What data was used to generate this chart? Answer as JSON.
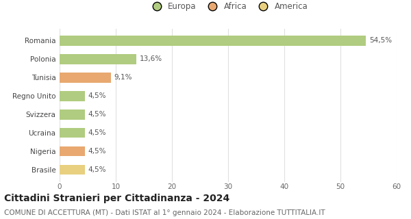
{
  "countries": [
    "Brasile",
    "Nigeria",
    "Ucraina",
    "Svizzera",
    "Regno Unito",
    "Tunisia",
    "Polonia",
    "Romania"
  ],
  "values": [
    4.5,
    4.5,
    4.5,
    4.5,
    4.5,
    9.1,
    13.6,
    54.5
  ],
  "labels": [
    "4,5%",
    "4,5%",
    "4,5%",
    "4,5%",
    "4,5%",
    "9,1%",
    "13,6%",
    "54,5%"
  ],
  "colors": [
    "#e8d080",
    "#e8a870",
    "#b0cc80",
    "#b0cc80",
    "#b0cc80",
    "#e8a870",
    "#b0cc80",
    "#b0cc80"
  ],
  "legend": [
    {
      "label": "Europa",
      "color": "#b0cc80"
    },
    {
      "label": "Africa",
      "color": "#e8a870"
    },
    {
      "label": "America",
      "color": "#e8d080"
    }
  ],
  "xlim": [
    0,
    60
  ],
  "xticks": [
    0,
    10,
    20,
    30,
    40,
    50,
    60
  ],
  "title": "Cittadini Stranieri per Cittadinanza - 2024",
  "subtitle": "COMUNE DI ACCETTURA (MT) - Dati ISTAT al 1° gennaio 2024 - Elaborazione TUTTITALIA.IT",
  "title_fontsize": 10,
  "subtitle_fontsize": 7.5,
  "background_color": "#ffffff",
  "grid_color": "#e0e0e0"
}
